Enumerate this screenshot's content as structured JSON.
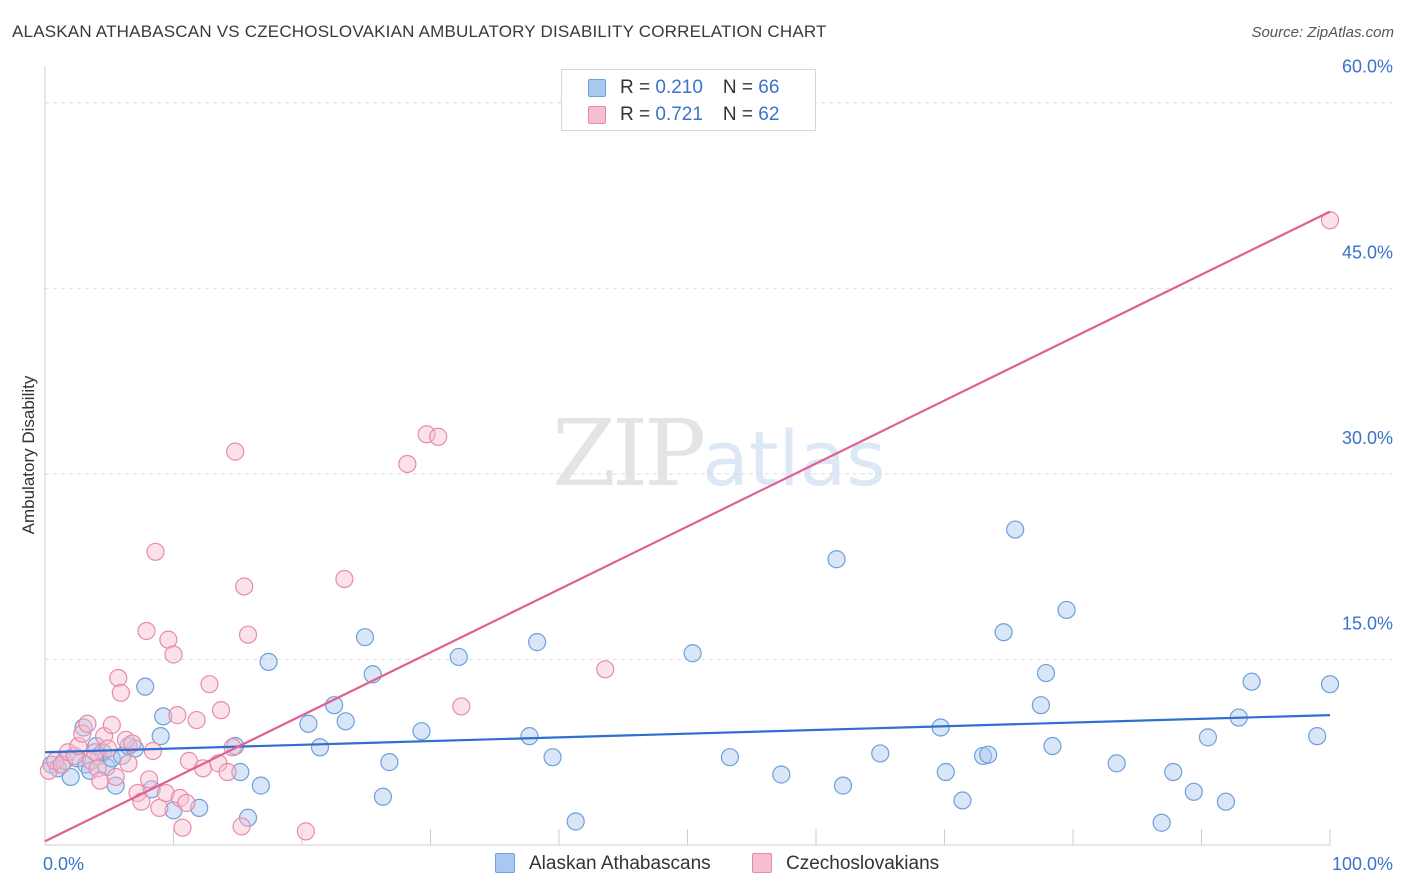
{
  "title": "ALASKAN ATHABASCAN VS CZECHOSLOVAKIAN AMBULATORY DISABILITY CORRELATION CHART",
  "source": "Source: ZipAtlas.com",
  "watermark": {
    "zip": "ZIP",
    "atlas": "atlas"
  },
  "legend": {
    "r_label": "R = ",
    "n_label": "N = ",
    "series": [
      {
        "r": "0.210",
        "n": "66"
      },
      {
        "r": "0.721",
        "n": "62"
      }
    ]
  },
  "colors": {
    "blue_fill": "#a9c8ef",
    "blue_stroke": "#6f9fdb",
    "blue_line": "#2f6fcf",
    "pink_fill": "#f6bfd0",
    "pink_stroke": "#ea8aa9",
    "pink_line": "#e0608e",
    "tick_label": "#3a73c9",
    "grid": "#dcdcdc"
  },
  "chart_data": {
    "type": "scatter",
    "ylabel": "Ambulatory Disability",
    "xlim": [
      0,
      100
    ],
    "ylim": [
      0,
      62
    ],
    "x_tick_labels": [
      "0.0%",
      "100.0%"
    ],
    "y_ticks": [
      15,
      30,
      45,
      60
    ],
    "y_tick_labels": [
      "15.0%",
      "30.0%",
      "45.0%",
      "60.0%"
    ],
    "series": [
      {
        "name": "Alaskan Athabascans",
        "r": 0.21,
        "n": 66,
        "trend": {
          "x0": 0,
          "y0": 7.5,
          "x1": 100,
          "y1": 10.5
        },
        "points": [
          [
            0.5,
            6.5
          ],
          [
            1,
            6.2
          ],
          [
            1.5,
            6.8
          ],
          [
            2,
            5.5
          ],
          [
            2.5,
            7
          ],
          [
            3,
            9.5
          ],
          [
            3.2,
            6.5
          ],
          [
            3.5,
            6
          ],
          [
            4,
            8
          ],
          [
            4.2,
            7.2
          ],
          [
            4.5,
            7.5
          ],
          [
            4.8,
            6.3
          ],
          [
            5.2,
            7
          ],
          [
            5.5,
            4.8
          ],
          [
            6,
            7.2
          ],
          [
            6.5,
            8
          ],
          [
            7,
            7.8
          ],
          [
            7.8,
            12.8
          ],
          [
            8.3,
            4.5
          ],
          [
            9,
            8.8
          ],
          [
            9.2,
            10.4
          ],
          [
            10,
            2.8
          ],
          [
            12,
            3
          ],
          [
            14.8,
            8
          ],
          [
            15.2,
            5.9
          ],
          [
            15.8,
            2.2
          ],
          [
            16.8,
            4.8
          ],
          [
            17.4,
            14.8
          ],
          [
            20.5,
            9.8
          ],
          [
            21.4,
            7.9
          ],
          [
            22.5,
            11.3
          ],
          [
            23.4,
            10
          ],
          [
            24.9,
            16.8
          ],
          [
            25.5,
            13.8
          ],
          [
            26.3,
            3.9
          ],
          [
            26.8,
            6.7
          ],
          [
            29.3,
            9.2
          ],
          [
            32.2,
            15.2
          ],
          [
            37.7,
            8.8
          ],
          [
            38.3,
            16.4
          ],
          [
            39.5,
            7.1
          ],
          [
            41.3,
            1.9
          ],
          [
            50.4,
            15.5
          ],
          [
            53.3,
            7.1
          ],
          [
            57.3,
            5.7
          ],
          [
            61.6,
            23.1
          ],
          [
            62.1,
            4.8
          ],
          [
            65,
            7.4
          ],
          [
            69.7,
            9.5
          ],
          [
            70.1,
            5.9
          ],
          [
            71.4,
            3.6
          ],
          [
            73,
            7.2
          ],
          [
            73.4,
            7.3
          ],
          [
            74.6,
            17.2
          ],
          [
            75.5,
            25.5
          ],
          [
            77.5,
            11.3
          ],
          [
            77.9,
            13.9
          ],
          [
            78.4,
            8
          ],
          [
            79.5,
            19
          ],
          [
            83.4,
            6.6
          ],
          [
            86.9,
            1.8
          ],
          [
            87.8,
            5.9
          ],
          [
            89.4,
            4.3
          ],
          [
            90.5,
            8.7
          ],
          [
            91.9,
            3.5
          ],
          [
            92.9,
            10.3
          ],
          [
            93.9,
            13.2
          ],
          [
            99,
            8.8
          ],
          [
            100,
            13
          ]
        ]
      },
      {
        "name": "Czechoslovakians",
        "r": 0.721,
        "n": 62,
        "trend": {
          "x0": 0,
          "y0": 0.3,
          "x1": 100,
          "y1": 51.2
        },
        "points": [
          [
            0.3,
            6
          ],
          [
            0.8,
            6.8
          ],
          [
            1.3,
            6.5
          ],
          [
            1.8,
            7.5
          ],
          [
            2.3,
            7.2
          ],
          [
            2.6,
            8
          ],
          [
            2.9,
            9
          ],
          [
            3.3,
            9.8
          ],
          [
            3.6,
            6.8
          ],
          [
            3.9,
            7.5
          ],
          [
            4.1,
            6.2
          ],
          [
            4.3,
            5.2
          ],
          [
            4.6,
            8.8
          ],
          [
            4.9,
            7.8
          ],
          [
            5.2,
            9.7
          ],
          [
            5.5,
            5.5
          ],
          [
            5.7,
            13.5
          ],
          [
            5.9,
            12.3
          ],
          [
            6.3,
            8.5
          ],
          [
            6.5,
            6.6
          ],
          [
            6.8,
            8.2
          ],
          [
            7.2,
            4.2
          ],
          [
            7.5,
            3.5
          ],
          [
            7.9,
            17.3
          ],
          [
            8.1,
            5.3
          ],
          [
            8.4,
            7.6
          ],
          [
            8.6,
            23.7
          ],
          [
            8.9,
            3
          ],
          [
            9.4,
            4.2
          ],
          [
            9.6,
            16.6
          ],
          [
            10,
            15.4
          ],
          [
            10.3,
            10.5
          ],
          [
            10.5,
            3.8
          ],
          [
            10.7,
            1.4
          ],
          [
            11,
            3.4
          ],
          [
            11.2,
            6.8
          ],
          [
            11.8,
            10.1
          ],
          [
            12.3,
            6.2
          ],
          [
            12.8,
            13
          ],
          [
            13.5,
            6.6
          ],
          [
            13.7,
            10.9
          ],
          [
            14.2,
            5.9
          ],
          [
            14.6,
            7.9
          ],
          [
            14.8,
            31.8
          ],
          [
            15.3,
            1.5
          ],
          [
            15.5,
            20.9
          ],
          [
            15.8,
            17
          ],
          [
            20.3,
            1.1
          ],
          [
            23.3,
            21.5
          ],
          [
            28.2,
            30.8
          ],
          [
            29.7,
            33.2
          ],
          [
            30.6,
            33
          ],
          [
            32.4,
            11.2
          ],
          [
            43.6,
            14.2
          ],
          [
            100,
            50.5
          ]
        ]
      }
    ]
  }
}
